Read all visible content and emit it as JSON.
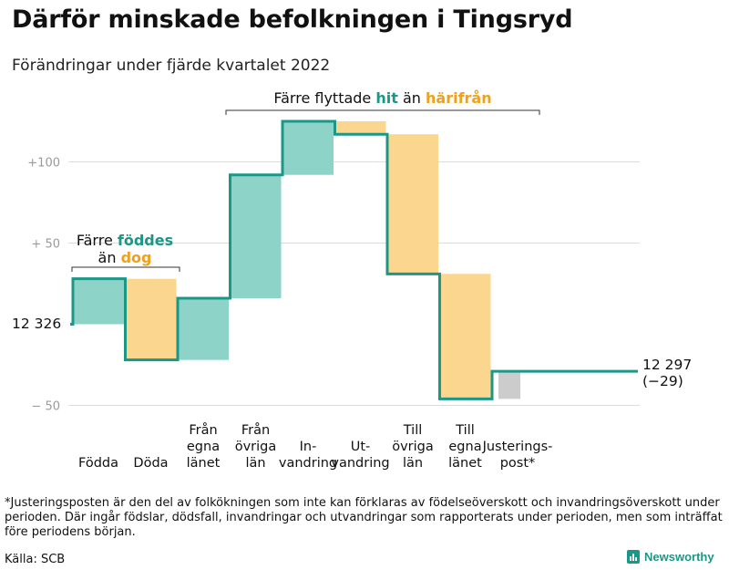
{
  "title": "Därför minskade befolkningen i Tingsryd",
  "subtitle": "Förändringar under fjärde kvartalet 2022",
  "chart_data": {
    "type": "waterfall",
    "title": "Därför minskade befolkningen i Tingsryd",
    "subtitle": "Förändringar under fjärde kvartalet 2022",
    "start_label": "12 326",
    "start_value": 0,
    "end_label": "12 297",
    "end_change": "(−29)",
    "y_ticks": [
      {
        "value": 100,
        "label": "+100"
      },
      {
        "value": 50,
        "label": "+ 50"
      },
      {
        "value": -50,
        "label": "− 50"
      }
    ],
    "ylim": [
      -55,
      135
    ],
    "steps": [
      {
        "lines": [
          "Födda"
        ],
        "from": 0,
        "to": 28,
        "color": "#8dd3c7"
      },
      {
        "lines": [
          "Döda"
        ],
        "from": 28,
        "to": -22,
        "color": "#fbd68f"
      },
      {
        "lines": [
          "Från",
          "egna",
          "länet"
        ],
        "from": -22,
        "to": 16,
        "color": "#8dd3c7"
      },
      {
        "lines": [
          "Från",
          "övriga",
          "län"
        ],
        "from": 16,
        "to": 92,
        "color": "#8dd3c7"
      },
      {
        "lines": [
          "In-",
          "vandring"
        ],
        "from": 92,
        "to": 125,
        "color": "#8dd3c7"
      },
      {
        "lines": [
          "Ut-",
          "vandring"
        ],
        "from": 125,
        "to": 117,
        "color": "#fbd68f"
      },
      {
        "lines": [
          "Till",
          "övriga",
          "län"
        ],
        "from": 117,
        "to": 31,
        "color": "#fbd68f"
      },
      {
        "lines": [
          "Till",
          "egna",
          "länet"
        ],
        "from": 31,
        "to": -46,
        "color": "#fbd68f"
      },
      {
        "lines": [
          "Justerings-",
          "post*"
        ],
        "from": -46,
        "to": -29,
        "color": "#cccccc"
      }
    ],
    "annotations": {
      "births": {
        "prefix": "Färre ",
        "highlight": "föddes",
        "line2_prefix": "än ",
        "line2_highlight": "dog"
      },
      "migration": {
        "prefix": "Färre flyttade ",
        "highlight1": "hit",
        "middle": " än ",
        "highlight2": "härifrån"
      }
    }
  },
  "footnote": "*Justeringsposten är den del av folkökningen som inte kan förklaras av födelseöverskott och invandringsöverskott under perioden. Där ingår födslar, dödsfall, invandringar och utvandringar som rapporterats under perioden, men som inträffat före periodens början.",
  "source": "Källa: SCB",
  "brand": "Newsworthy",
  "colors": {
    "teal": "#1b9788",
    "orange": "#f0a11c",
    "increase": "#8dd3c7",
    "decrease": "#fbd68f",
    "adjust": "#cccccc",
    "grid": "#dcdcdc"
  }
}
